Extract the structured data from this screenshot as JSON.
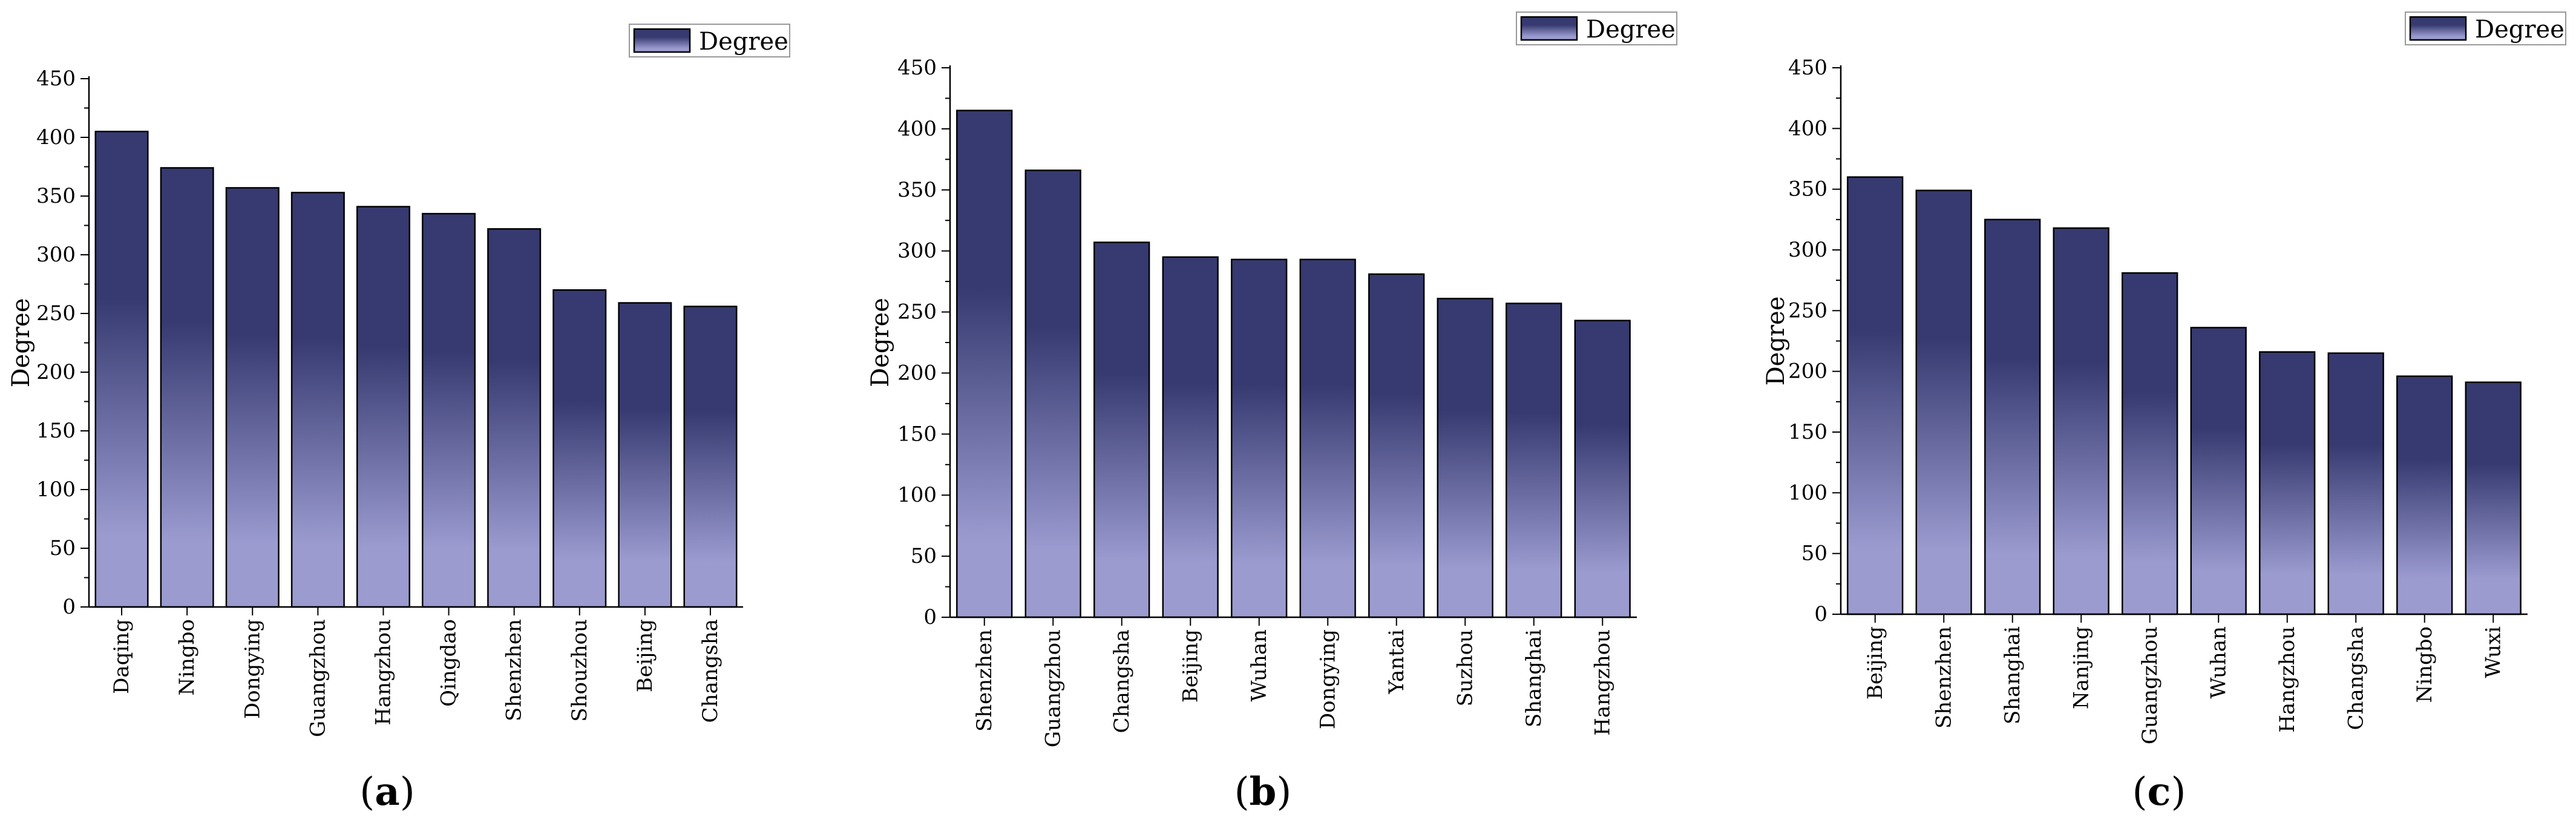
{
  "colors": {
    "bar_top": "#363a70",
    "bar_bottom": "#9b9bd0",
    "bar_stroke": "#000000"
  },
  "chart_data": [
    {
      "type": "bar",
      "panel_label": "a",
      "ylabel": "Degree",
      "legend": "Degree",
      "legend_position": "top-right",
      "ylim": [
        0,
        450
      ],
      "yticks": [
        "0",
        "50",
        "100",
        "150",
        "200",
        "250",
        "300",
        "350",
        "400",
        "450"
      ],
      "categories": [
        "Daqing",
        "Ningbo",
        "Dongying",
        "Guangzhou",
        "Hangzhou",
        "Qingdao",
        "Shenzhen",
        "Shouzhou",
        "Beijing",
        "Changsha"
      ],
      "values": [
        405,
        374,
        357,
        353,
        341,
        335,
        322,
        270,
        259,
        256
      ]
    },
    {
      "type": "bar",
      "panel_label": "b",
      "ylabel": "Degree",
      "legend": "Degree",
      "legend_position": "top-right",
      "ylim": [
        0,
        450
      ],
      "yticks": [
        "0",
        "50",
        "100",
        "150",
        "200",
        "250",
        "300",
        "350",
        "400",
        "450"
      ],
      "categories": [
        "Shenzhen",
        "Guangzhou",
        "Changsha",
        "Beijing",
        "Wuhan",
        "Dongying",
        "Yantai",
        "Suzhou",
        "Shanghai",
        "Hangzhou"
      ],
      "values": [
        415,
        366,
        307,
        295,
        293,
        293,
        281,
        261,
        257,
        243
      ]
    },
    {
      "type": "bar",
      "panel_label": "c",
      "ylabel": "Degree",
      "legend": "Degree",
      "legend_position": "top-right",
      "ylim": [
        0,
        450
      ],
      "yticks": [
        "0",
        "50",
        "100",
        "150",
        "200",
        "250",
        "300",
        "350",
        "400",
        "450"
      ],
      "categories": [
        "Beijing",
        "Shenzhen",
        "Shanghai",
        "Nanjing",
        "Guangzhou",
        "Wuhan",
        "Hangzhou",
        "Changsha",
        "Ningbo",
        "Wuxi"
      ],
      "values": [
        360,
        349,
        325,
        318,
        281,
        236,
        216,
        215,
        196,
        191
      ]
    }
  ]
}
